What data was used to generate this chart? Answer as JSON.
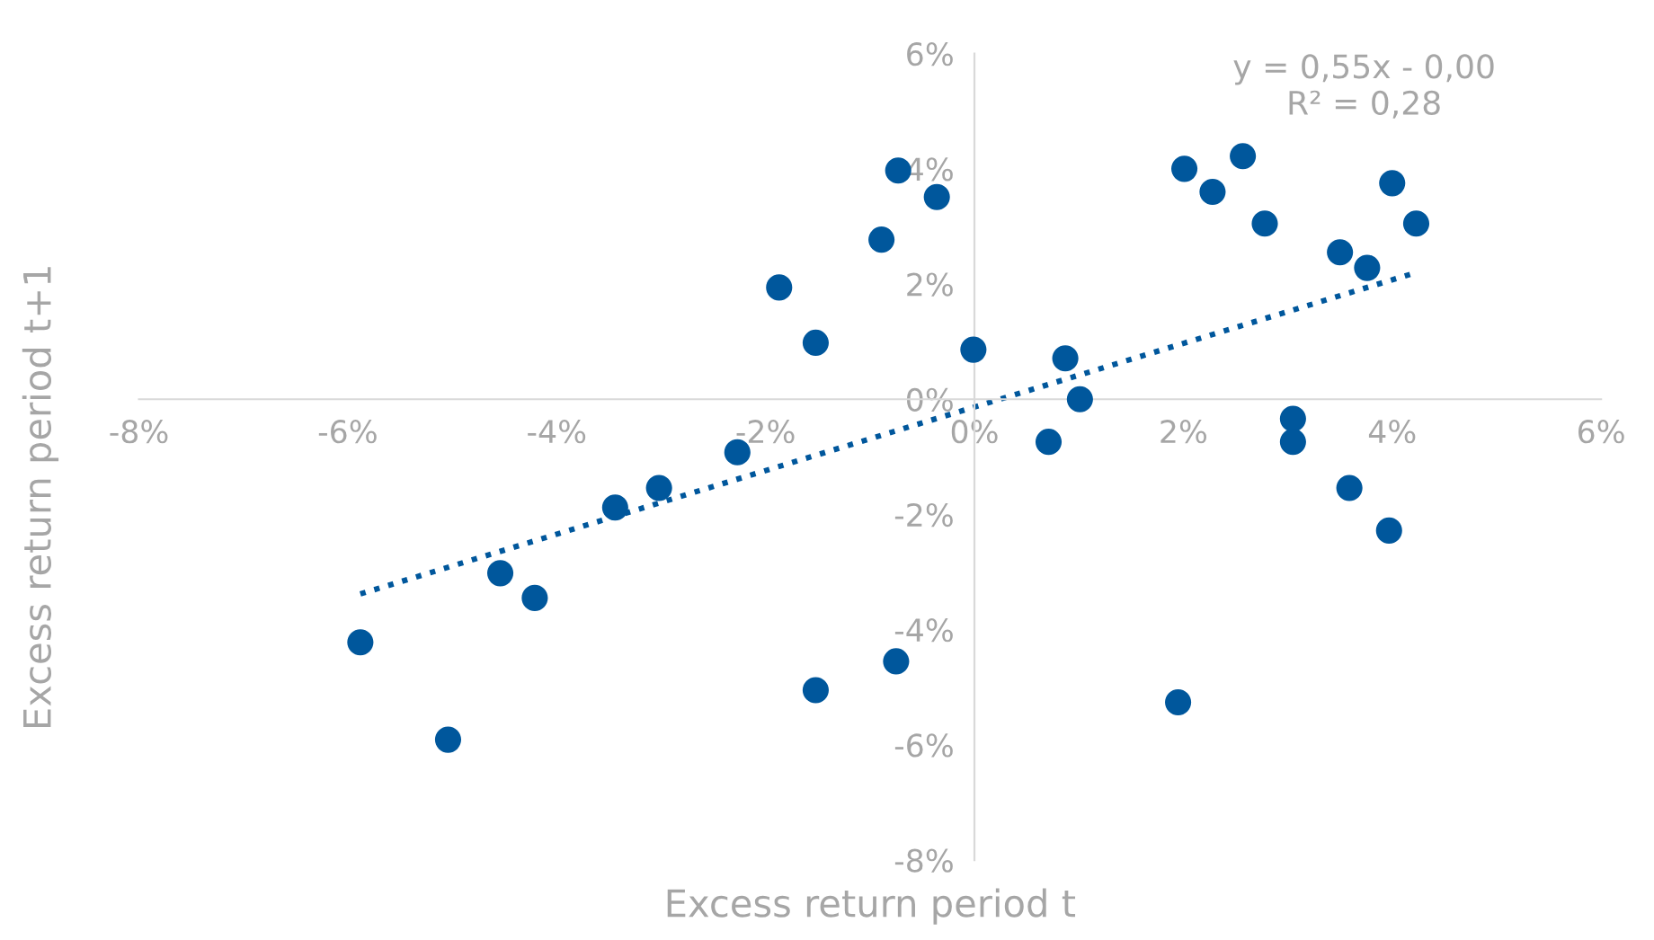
{
  "chart_data": {
    "type": "scatter",
    "xlabel": "Excess return period t",
    "ylabel": "Excess return period t+1",
    "annotations": [
      "y = 0,55x - 0,00\nR² = 0,28"
    ],
    "xlim": [
      -8,
      6
    ],
    "ylim": [
      -8,
      6
    ],
    "xticks": [
      {
        "value": -8,
        "label": "-8%"
      },
      {
        "value": -6,
        "label": "-6%"
      },
      {
        "value": -4,
        "label": "-4%"
      },
      {
        "value": -2,
        "label": "-2%"
      },
      {
        "value": 0,
        "label": "0%"
      },
      {
        "value": 2,
        "label": "2%"
      },
      {
        "value": 4,
        "label": "4%"
      },
      {
        "value": 6,
        "label": "6%"
      }
    ],
    "yticks": [
      {
        "value": -8,
        "label": "-8%"
      },
      {
        "value": -6,
        "label": "-6%"
      },
      {
        "value": -4,
        "label": "-4%"
      },
      {
        "value": -2,
        "label": "-2%"
      },
      {
        "value": 0,
        "label": "0%"
      },
      {
        "value": 2,
        "label": "2%"
      },
      {
        "value": 4,
        "label": "4%"
      },
      {
        "value": 6,
        "label": "6%"
      }
    ],
    "grid": false,
    "legend": false,
    "series": [
      {
        "color": "#00579c",
        "marker": "circle",
        "x": [
          -5.88,
          -5.04,
          -4.54,
          -4.21,
          -3.44,
          -3.02,
          -2.27,
          -1.87,
          -1.52,
          -1.52,
          -0.89,
          -0.75,
          -0.73,
          -0.36,
          -0.01,
          0.71,
          0.87,
          1.01,
          1.95,
          2.01,
          2.28,
          2.57,
          2.78,
          3.05,
          3.05,
          3.5,
          3.59,
          3.76,
          3.97,
          4.0,
          4.23
        ],
        "values": [
          -4.22,
          -5.91,
          -3.02,
          -3.45,
          -1.88,
          -1.54,
          -0.92,
          1.94,
          0.98,
          -5.05,
          2.77,
          -4.55,
          3.97,
          3.51,
          0.86,
          -0.74,
          0.71,
          0.0,
          -5.26,
          4.0,
          3.6,
          4.22,
          3.05,
          -0.34,
          -0.74,
          2.55,
          -1.54,
          2.28,
          -2.28,
          3.75,
          3.05
        ]
      },
      {
        "type": "line",
        "color": "#00579c",
        "marker": "none",
        "line_style": "dotted",
        "x": [
          -5.88,
          4.23
        ],
        "values": [
          -3.38,
          2.2
        ]
      }
    ]
  }
}
